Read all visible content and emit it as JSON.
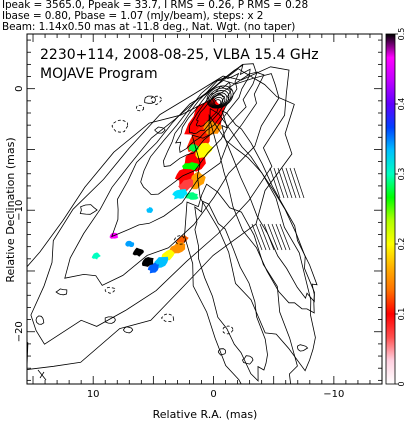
{
  "header": {
    "line1": "Ipeak = 3565.0, Ppeak = 33.7, I RMS = 0.26, P RMS = 0.28",
    "line2": "Ibase = 0.80, Pbase = 1.07 (mJy/beam), steps: x 2",
    "line3": "Beam: 1.14x0.50 mas at -11.8 deg., Nat. Wgt. (no taper)"
  },
  "chart_data": {
    "type": "heatmap",
    "title": "2230+114, 2008-08-25, VLBA 15.4 GHz",
    "subtitle": "MOJAVE Program",
    "xlabel": "Relative R.A. (mas)",
    "ylabel": "Relative Declination (mas)",
    "xlim": [
      15.5,
      -14.0
    ],
    "ylim": [
      -24.3,
      4.5
    ],
    "xticks": [
      10,
      0,
      -10
    ],
    "yticks": [
      0,
      -10,
      -20
    ],
    "colorbar": {
      "range": [
        0,
        0.5
      ],
      "ticks": [
        0,
        0.1,
        0.2,
        0.3,
        0.4,
        0.5
      ],
      "colors": [
        "#ffffff",
        "#ffd0e0",
        "#ff5050",
        "#ff0000",
        "#ff7000",
        "#ffb000",
        "#ffff00",
        "#b0ff00",
        "#00ff00",
        "#00ffc0",
        "#00c0ff",
        "#0040ff",
        "#6000ff",
        "#c000ff",
        "#ff00ff",
        "#000000"
      ]
    }
  }
}
